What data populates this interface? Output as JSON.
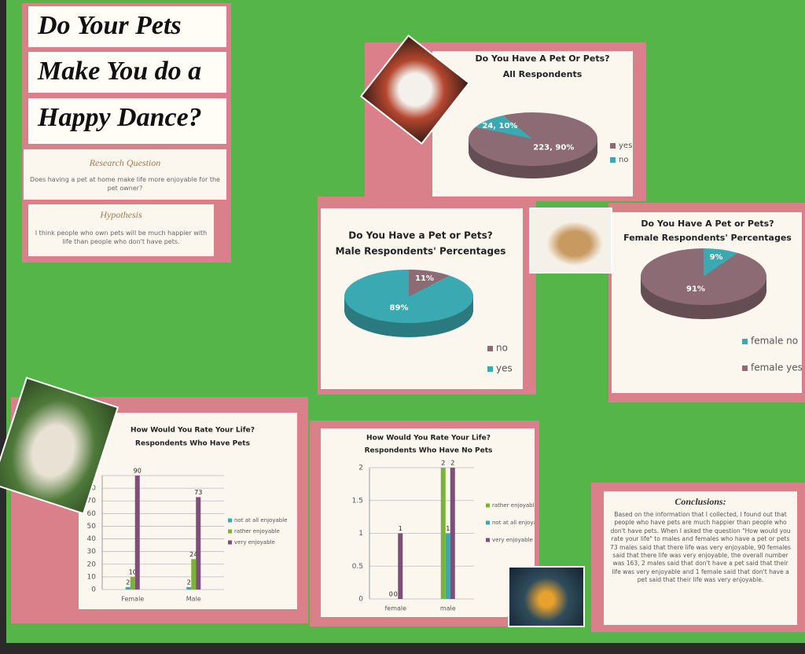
{
  "poster": {
    "title_lines": [
      "Do Your Pets",
      "Make You do a",
      "Happy Dance?"
    ],
    "research_question": {
      "heading": "Research Question",
      "text": "Does having a pet at home make life more enjoyable for the pet owner?"
    },
    "hypothesis": {
      "heading": "Hypothesis",
      "text": "I think people who own pets will be much happier with life than people who don't have pets."
    },
    "conclusions": {
      "heading": "Conclusions:",
      "text": "Based on the information that I collected, I found out that people who have pets are much happier than people who don't have pets.  When I asked the question \"How would you rate your life\" to males and females who have a pet or pets  73 males said that there life was very enjoyable, 90 females said that there life was very enjoyable, the overall number was 163, 2 males said that don't have a pet said that their life was very enjoyable and 1 female said that don't have a pet said that their life was very enjoyable."
    }
  },
  "chart_data": [
    {
      "type": "pie",
      "title": "Do You Have A Pet Or Pets?",
      "subtitle": "All Respondents",
      "categories": [
        "yes",
        "no"
      ],
      "values": [
        223,
        24
      ],
      "value_labels": [
        "223, 90%",
        "24, 10%"
      ],
      "colors": [
        "#8c6b74",
        "#3ba9b1"
      ]
    },
    {
      "type": "pie",
      "title": "Do You Have a Pet or Pets?",
      "subtitle": "Male Respondents' Percentages",
      "categories": [
        "no",
        "yes"
      ],
      "values": [
        11,
        89
      ],
      "value_labels": [
        "11%",
        "89%"
      ],
      "colors": [
        "#8c6b74",
        "#3ba9b1"
      ]
    },
    {
      "type": "pie",
      "title": "Do You Have A Pet or Pets?",
      "subtitle": "Female Respondents' Percentages",
      "categories": [
        "female no",
        "female yes"
      ],
      "values": [
        9,
        91
      ],
      "value_labels": [
        "9%",
        "91%"
      ],
      "colors": [
        "#3ba9b1",
        "#8c6b74"
      ]
    },
    {
      "type": "bar",
      "title": "How Would You Rate Your Life?",
      "subtitle": "Respondents Who Have Pets",
      "categories": [
        "Female",
        "Male"
      ],
      "series": [
        {
          "name": "not at all enjoyable",
          "color": "#3ba9b1",
          "values": [
            2,
            2
          ]
        },
        {
          "name": "rather enjoyable",
          "color": "#7bb23c",
          "values": [
            10,
            24
          ]
        },
        {
          "name": "very enjoyable",
          "color": "#7e4f78",
          "values": [
            90,
            73
          ]
        }
      ],
      "ylim": [
        0,
        90
      ],
      "yticks": [
        0,
        10,
        20,
        30,
        40,
        50,
        60,
        70,
        80,
        90
      ],
      "grid": true
    },
    {
      "type": "bar",
      "title": "How Would You Rate Your Life?",
      "subtitle": "Respondents Who Have No Pets",
      "categories": [
        "female",
        "male"
      ],
      "series": [
        {
          "name": "rather enjoyable",
          "color": "#7bb23c",
          "values": [
            0,
            2
          ]
        },
        {
          "name": "not at all enjoyable",
          "color": "#3ba9b1",
          "values": [
            0,
            1
          ]
        },
        {
          "name": "very enjoyable",
          "color": "#7e4f78",
          "values": [
            1,
            2
          ]
        }
      ],
      "ylim": [
        0,
        2
      ],
      "yticks": [
        0,
        0.5,
        1,
        1.5,
        2
      ],
      "grid": true
    }
  ]
}
